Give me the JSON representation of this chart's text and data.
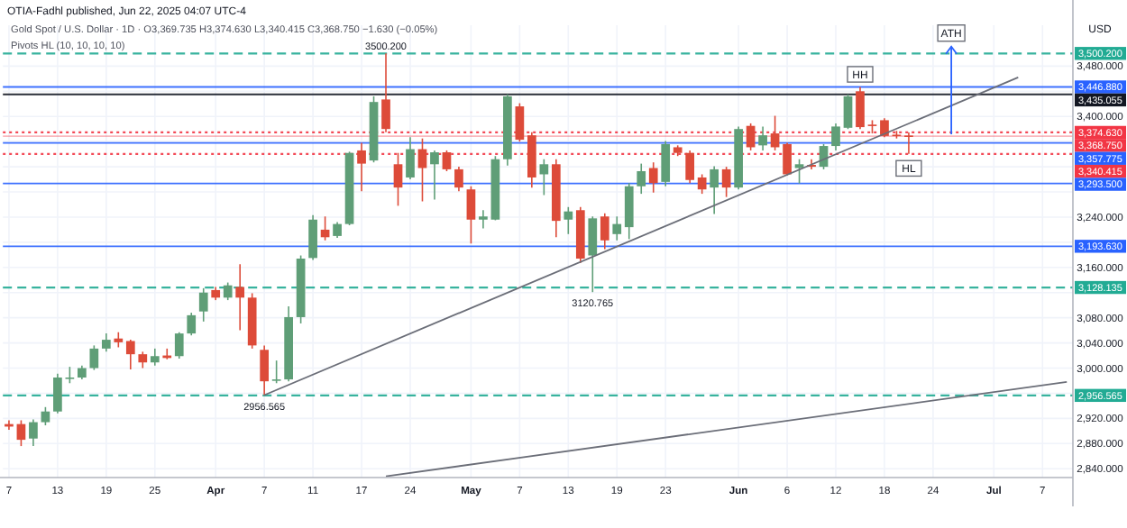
{
  "chart_data": {
    "type": "candlestick",
    "title": "Gold Spot / U.S. Dollar · 1D · O3,369.735 H3,374.630 L3,340.415 C3,368.750 −1.630 (−0.05%)",
    "subtitle": "Pivots HL (10, 10, 10, 10)",
    "ylabel": "USD",
    "categories": [
      "7",
      null,
      null,
      null,
      "13",
      null,
      null,
      null,
      "19",
      null,
      null,
      null,
      "25",
      null,
      null,
      null,
      null,
      "Apr",
      null,
      null,
      null,
      "7",
      null,
      null,
      null,
      "11",
      null,
      null,
      null,
      "17",
      null,
      null,
      null,
      "24",
      null,
      null,
      null,
      null,
      "May",
      null,
      null,
      null,
      "7",
      null,
      null,
      null,
      "13",
      null,
      null,
      null,
      "19",
      null,
      null,
      null,
      "23",
      null,
      null,
      null,
      null,
      null,
      "Jun",
      null,
      null,
      null,
      "6",
      null,
      null,
      null,
      "12",
      null,
      null,
      null,
      "18",
      null,
      null,
      null,
      "24",
      null,
      null,
      null,
      null,
      "Jul",
      null,
      null,
      null,
      "7",
      null,
      null
    ],
    "series": [
      {
        "ohlc": [
          [
            2911,
            2917,
            2902,
            2907
          ],
          [
            2911,
            2917,
            2876,
            2886
          ],
          [
            2888,
            2918.5,
            2876,
            2914
          ],
          [
            2914,
            2938,
            2909,
            2931
          ],
          [
            2931,
            2991,
            2928,
            2985
          ],
          [
            2984,
            3002,
            2976,
            2985
          ],
          [
            2985,
            3004,
            2982,
            3000
          ],
          [
            3000,
            3036,
            2997,
            3031
          ],
          [
            3031,
            3055,
            3026,
            3045
          ],
          [
            3047,
            3057,
            3033,
            3041
          ],
          [
            3043,
            3045,
            2998,
            3022
          ],
          [
            3022,
            3026,
            3000,
            3009
          ],
          [
            3009,
            3031,
            3004,
            3019
          ],
          [
            3020,
            3031,
            3014,
            3016
          ],
          [
            3019,
            3057,
            3015,
            3055
          ],
          [
            3055,
            3088,
            3052,
            3084
          ],
          [
            3090,
            3127,
            3074,
            3120
          ],
          [
            3124,
            3129,
            3108,
            3112
          ],
          [
            3112,
            3136,
            3108,
            3131.5
          ],
          [
            3129,
            3165,
            3060,
            3112
          ],
          [
            3112,
            3119,
            3031,
            3036
          ],
          [
            3029,
            3036,
            2956.565,
            2979
          ],
          [
            2980,
            3012,
            2976,
            2982
          ],
          [
            2982,
            3098,
            2979,
            3081
          ],
          [
            3081,
            3179,
            3071,
            3174
          ],
          [
            3175,
            3243,
            3172,
            3236
          ],
          [
            3220,
            3241,
            3203,
            3208
          ],
          [
            3210,
            3232,
            3207,
            3229
          ],
          [
            3229,
            3344,
            3227,
            3342
          ],
          [
            3346,
            3358,
            3281,
            3325
          ],
          [
            3330,
            3432,
            3327,
            3423
          ],
          [
            3427,
            3500.2,
            3375,
            3380
          ],
          [
            3324,
            3342,
            3258,
            3287
          ],
          [
            3303,
            3367,
            3300,
            3348
          ],
          [
            3348,
            3365,
            3265,
            3318
          ],
          [
            3324,
            3346,
            3268,
            3343
          ],
          [
            3343,
            3346,
            3313,
            3316
          ],
          [
            3316,
            3320,
            3281,
            3287
          ],
          [
            3284,
            3289,
            3198,
            3236
          ],
          [
            3236,
            3251,
            3222,
            3241
          ],
          [
            3236,
            3337,
            3235,
            3332
          ],
          [
            3332,
            3435,
            3322,
            3432
          ],
          [
            3416,
            3421,
            3360,
            3363
          ],
          [
            3370,
            3375,
            3287,
            3303
          ],
          [
            3308,
            3332,
            3275,
            3324
          ],
          [
            3324,
            3332,
            3208,
            3234
          ],
          [
            3236,
            3256,
            3213,
            3249
          ],
          [
            3251,
            3256,
            3167,
            3174
          ],
          [
            3179,
            3241,
            3120.765,
            3238
          ],
          [
            3241,
            3246,
            3189,
            3203
          ],
          [
            3213,
            3241,
            3203,
            3229
          ],
          [
            3224,
            3294,
            3205,
            3289
          ],
          [
            3289,
            3325,
            3277,
            3313
          ],
          [
            3318,
            3327,
            3279,
            3294
          ],
          [
            3296,
            3361,
            3289,
            3356
          ],
          [
            3351,
            3354,
            3337,
            3342
          ],
          [
            3342,
            3346,
            3294,
            3299
          ],
          [
            3303,
            3308,
            3277,
            3284
          ],
          [
            3287,
            3321,
            3245,
            3316
          ],
          [
            3316,
            3320,
            3272,
            3287
          ],
          [
            3287,
            3384,
            3284,
            3380
          ],
          [
            3385,
            3389,
            3346,
            3351
          ],
          [
            3354,
            3384,
            3346,
            3370
          ],
          [
            3373,
            3401,
            3346,
            3351
          ],
          [
            3356,
            3358,
            3306,
            3308
          ],
          [
            3318,
            3332,
            3293.5,
            3324
          ],
          [
            3323,
            3332,
            3316,
            3320
          ],
          [
            3320,
            3356,
            3316,
            3353
          ],
          [
            3353,
            3389,
            3346,
            3384
          ],
          [
            3382,
            3435,
            3380,
            3432
          ],
          [
            3440,
            3446.88,
            3380,
            3383
          ],
          [
            3387,
            3394,
            3373,
            3385
          ],
          [
            3394,
            3397,
            3367,
            3369
          ],
          [
            3371,
            3377,
            3365,
            3369
          ],
          [
            3369.735,
            3374.63,
            3340.415,
            3368.75
          ],
          null,
          null,
          null,
          null,
          null,
          null,
          null,
          null,
          null,
          null,
          null,
          null,
          null
        ]
      },
      {
        "type": "line",
        "color": "#6b6e78",
        "values": [
          null,
          null,
          null,
          null,
          null,
          null,
          null,
          null,
          null,
          null,
          null,
          null,
          null,
          null,
          null,
          null,
          null,
          null,
          null,
          null,
          null,
          2957,
          null,
          null,
          null,
          null,
          null,
          null,
          null,
          null,
          null,
          null,
          null,
          null,
          null,
          null,
          null,
          null,
          null,
          null,
          null,
          null,
          null,
          null,
          null,
          null,
          null,
          null,
          null,
          null,
          null,
          null,
          null,
          null,
          null,
          null,
          null,
          null,
          null,
          null,
          null,
          null,
          null,
          null,
          null,
          null,
          null,
          null,
          null,
          null,
          null,
          null,
          null,
          null,
          null,
          null,
          null,
          null,
          null,
          null,
          null,
          null,
          null,
          3462,
          null,
          null,
          null,
          null
        ]
      },
      {
        "type": "line",
        "color": "#6b6e78",
        "values": [
          null,
          null,
          null,
          null,
          null,
          null,
          null,
          null,
          null,
          null,
          null,
          null,
          null,
          null,
          null,
          null,
          null,
          null,
          null,
          null,
          null,
          null,
          null,
          null,
          null,
          null,
          null,
          null,
          null,
          null,
          null,
          2828,
          null,
          null,
          null,
          null,
          null,
          null,
          null,
          null,
          null,
          null,
          null,
          null,
          null,
          null,
          null,
          null,
          null,
          null,
          null,
          null,
          null,
          null,
          null,
          null,
          null,
          null,
          null,
          null,
          null,
          null,
          null,
          null,
          null,
          null,
          null,
          null,
          null,
          null,
          null,
          null,
          null,
          null,
          null,
          null,
          null,
          null,
          null,
          null,
          null,
          null,
          null,
          null,
          null,
          null,
          null,
          2978
        ]
      }
    ],
    "ylim": [
      2826,
      3545
    ],
    "yticks": [
      {
        "value": 3480,
        "label": "3,480.000"
      },
      {
        "value": 3440,
        "label": null
      },
      {
        "value": 3400,
        "label": "3,400.000"
      },
      {
        "value": 3360,
        "label": null
      },
      {
        "value": 3320,
        "label": null
      },
      {
        "value": 3280,
        "label": null
      },
      {
        "value": 3240,
        "label": "3,240.000"
      },
      {
        "value": 3200,
        "label": null
      },
      {
        "value": 3160,
        "label": "3,160.000"
      },
      {
        "value": 3120,
        "label": null
      },
      {
        "value": 3080,
        "label": "3,080.000"
      },
      {
        "value": 3040,
        "label": "3,040.000"
      },
      {
        "value": 3000,
        "label": "3,000.000"
      },
      {
        "value": 2960,
        "label": null
      },
      {
        "value": 2920,
        "label": "2,920.000"
      },
      {
        "value": 2880,
        "label": "2,880.000"
      },
      {
        "value": 2840,
        "label": "2,840.000"
      }
    ],
    "ref_lines": [
      {
        "axis": "y",
        "value": 3500.2,
        "label": "3,500.200",
        "color": "#22ab94",
        "line_style": "dashed"
      },
      {
        "axis": "y",
        "value": 3446.88,
        "label": "3,446.880",
        "color": "#2962ff",
        "line_style": "solid"
      },
      {
        "axis": "y",
        "value": 3435.055,
        "label": "3,435.055",
        "color": "#131722",
        "line_style": "solid"
      },
      {
        "axis": "y",
        "value": 3374.63,
        "label": "3,374.630",
        "color": "#f23645",
        "line_style": "dotted"
      },
      {
        "axis": "y",
        "value": 3368.75,
        "label": "3,368.750",
        "color": "#f23645",
        "line_style": "solid"
      },
      {
        "axis": "y",
        "value": 3357.775,
        "label": "3,357.775",
        "color": "#2962ff",
        "line_style": "solid"
      },
      {
        "axis": "y",
        "value": 3340.415,
        "label": "3,340.415",
        "color": "#f23645",
        "line_style": "dotted"
      },
      {
        "axis": "y",
        "value": 3293.5,
        "label": "3,293.500",
        "color": "#2962ff",
        "line_style": "solid"
      },
      {
        "axis": "y",
        "value": 3193.63,
        "label": "3,193.630",
        "color": "#2962ff",
        "line_style": "solid"
      },
      {
        "axis": "y",
        "value": 3128.135,
        "label": "3,128.135",
        "color": "#22ab94",
        "line_style": "dashed"
      },
      {
        "axis": "y",
        "value": 2956.565,
        "label": "2,956.565",
        "color": "#22ab94",
        "line_style": "dashed"
      }
    ],
    "annotations": [
      "OTIA-Fadhl published, Jun 22, 2025 04:07 UTC-4",
      {
        "text": "ATH",
        "y": 3511
      },
      {
        "text": "3500.200",
        "y": 3500.2
      },
      {
        "text": "HH",
        "y": 3446.88
      },
      {
        "text": "HL",
        "y": 3340.415
      },
      {
        "text": "3120.765",
        "y": 3120.765
      },
      {
        "text": "2956.565",
        "y": 2956.565
      }
    ],
    "grid": true
  }
}
